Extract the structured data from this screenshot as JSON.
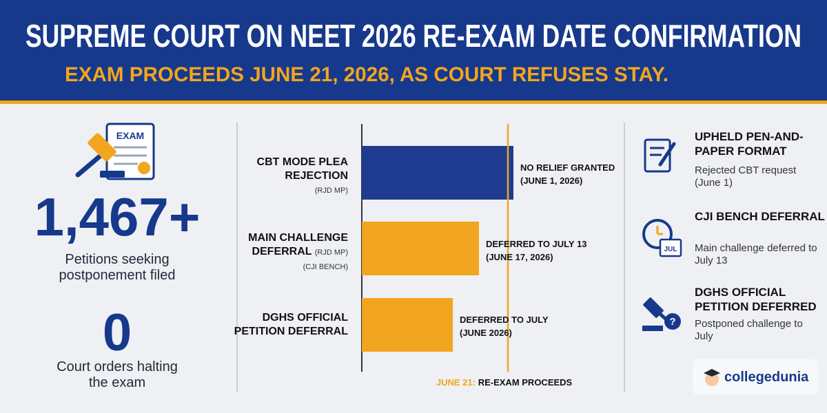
{
  "header": {
    "title": "SUPREME COURT ON NEET 2026 RE-EXAM DATE CONFIRMATION",
    "subtitle": "EXAM PROCEEDS JUNE 21, 2026, AS COURT REFUSES STAY."
  },
  "left": {
    "icon_label": "EXAM",
    "stats": [
      {
        "value": "1,467+",
        "label": "Petitions seeking postponement filed"
      },
      {
        "value": "0",
        "label": "Court orders halting the exam"
      }
    ]
  },
  "timeline": {
    "rows": [
      {
        "label": "CBT MODE PLEA REJECTION",
        "notes": [
          "(RJD MP)"
        ],
        "outcome": [
          "NO RELIEF GRANTED",
          "(JUNE 1, 2026)"
        ]
      },
      {
        "label": "MAIN CHALLENGE DEFERRAL",
        "notes": [
          "(RJD MP)",
          "(CJI BENCH)"
        ],
        "outcome": [
          "DEFERRED TO JULY 13",
          "(JUNE 17, 2026)"
        ]
      },
      {
        "label": "DGHS OFFICIAL PETITION DEFERRAL",
        "notes": [],
        "outcome": [
          "DEFERRED TO JULY",
          "(JUNE 2026)"
        ]
      }
    ],
    "marker": {
      "date": "JUNE 21:",
      "text": "RE-EXAM PROCEEDS"
    }
  },
  "right": {
    "items": [
      {
        "title": "UPHELD PEN-AND-PAPER FORMAT",
        "description": "Rejected CBT request (June 1)"
      },
      {
        "title": "CJI BENCH DEFERRAL",
        "description": "Main challenge deferred to July 13",
        "icon_label": "JUL"
      },
      {
        "title": "DGHS OFFICIAL PETITION DEFERRED",
        "description": "Postponed challenge to July"
      }
    ]
  },
  "logo": "collegedunia"
}
